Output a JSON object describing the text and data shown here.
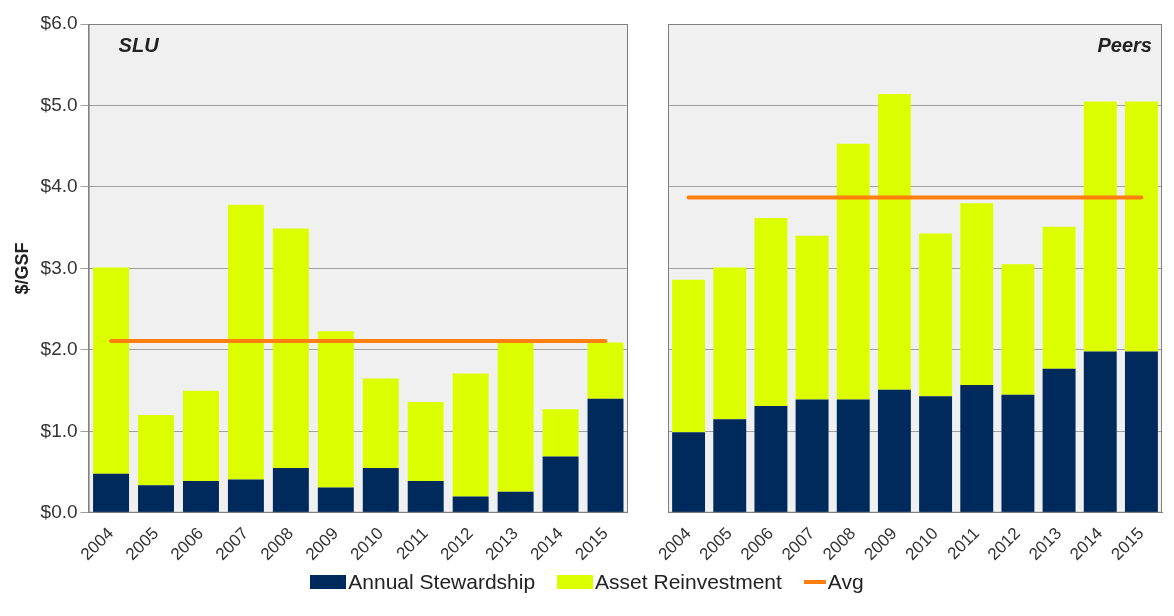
{
  "chart_data": [
    {
      "type": "bar",
      "stacked": true,
      "annotations": [
        "SLU"
      ],
      "ylabel": "$/GSF",
      "categories": [
        "2004",
        "2005",
        "2006",
        "2007",
        "2008",
        "2009",
        "2010",
        "2011",
        "2012",
        "2013",
        "2014",
        "2015"
      ],
      "series": [
        {
          "name": "Annual Stewardship",
          "color": "#002a5c",
          "values": [
            0.48,
            0.34,
            0.39,
            0.41,
            0.55,
            0.31,
            0.55,
            0.39,
            0.2,
            0.26,
            0.69,
            1.4
          ]
        },
        {
          "name": "Asset Reinvestment",
          "color": "#dcff00",
          "values": [
            2.53,
            0.86,
            1.11,
            3.37,
            2.94,
            1.92,
            1.1,
            0.97,
            1.51,
            1.84,
            0.58,
            0.69
          ]
        },
        {
          "name": "Avg",
          "type": "line",
          "color": "#ff7f0e",
          "values": [
            2.11,
            2.11,
            2.11,
            2.11,
            2.11,
            2.11,
            2.11,
            2.11,
            2.11,
            2.11,
            2.11,
            2.11
          ]
        }
      ],
      "ylim": [
        0,
        6
      ],
      "yticks": [
        {
          "value": 0,
          "label": "$0.0"
        },
        {
          "value": 1,
          "label": "$1.0"
        },
        {
          "value": 2,
          "label": "$2.0"
        },
        {
          "value": 3,
          "label": "$3.0"
        },
        {
          "value": 4,
          "label": "$4.0"
        },
        {
          "value": 5,
          "label": "$5.0"
        },
        {
          "value": 6,
          "label": "$6.0"
        }
      ],
      "grid": "y",
      "marker": "none",
      "legend": "bottom"
    },
    {
      "type": "bar",
      "stacked": true,
      "annotations": [
        "Peers"
      ],
      "categories": [
        "2004",
        "2005",
        "2006",
        "2007",
        "2008",
        "2009",
        "2010",
        "2011",
        "2012",
        "2013",
        "2014",
        "2015"
      ],
      "series": [
        {
          "color": "#002a5c",
          "values": [
            0.99,
            1.15,
            1.31,
            1.39,
            1.39,
            1.51,
            1.43,
            1.57,
            1.45,
            1.77,
            1.98,
            1.98
          ]
        },
        {
          "color": "#dcff00",
          "values": [
            1.87,
            1.86,
            2.31,
            2.01,
            3.14,
            3.63,
            2.0,
            2.23,
            1.6,
            1.74,
            3.07,
            3.07
          ]
        },
        {
          "type": "line",
          "color": "#ff7f0e",
          "values": [
            3.87,
            3.87,
            3.87,
            3.87,
            3.87,
            3.87,
            3.87,
            3.87,
            3.87,
            3.87,
            3.87,
            3.87
          ]
        }
      ],
      "ylim": [
        0,
        6
      ],
      "yticks": [
        0,
        1,
        2,
        3,
        4,
        5,
        6
      ],
      "grid": "y",
      "marker": "none",
      "tick_labels": "x"
    }
  ]
}
